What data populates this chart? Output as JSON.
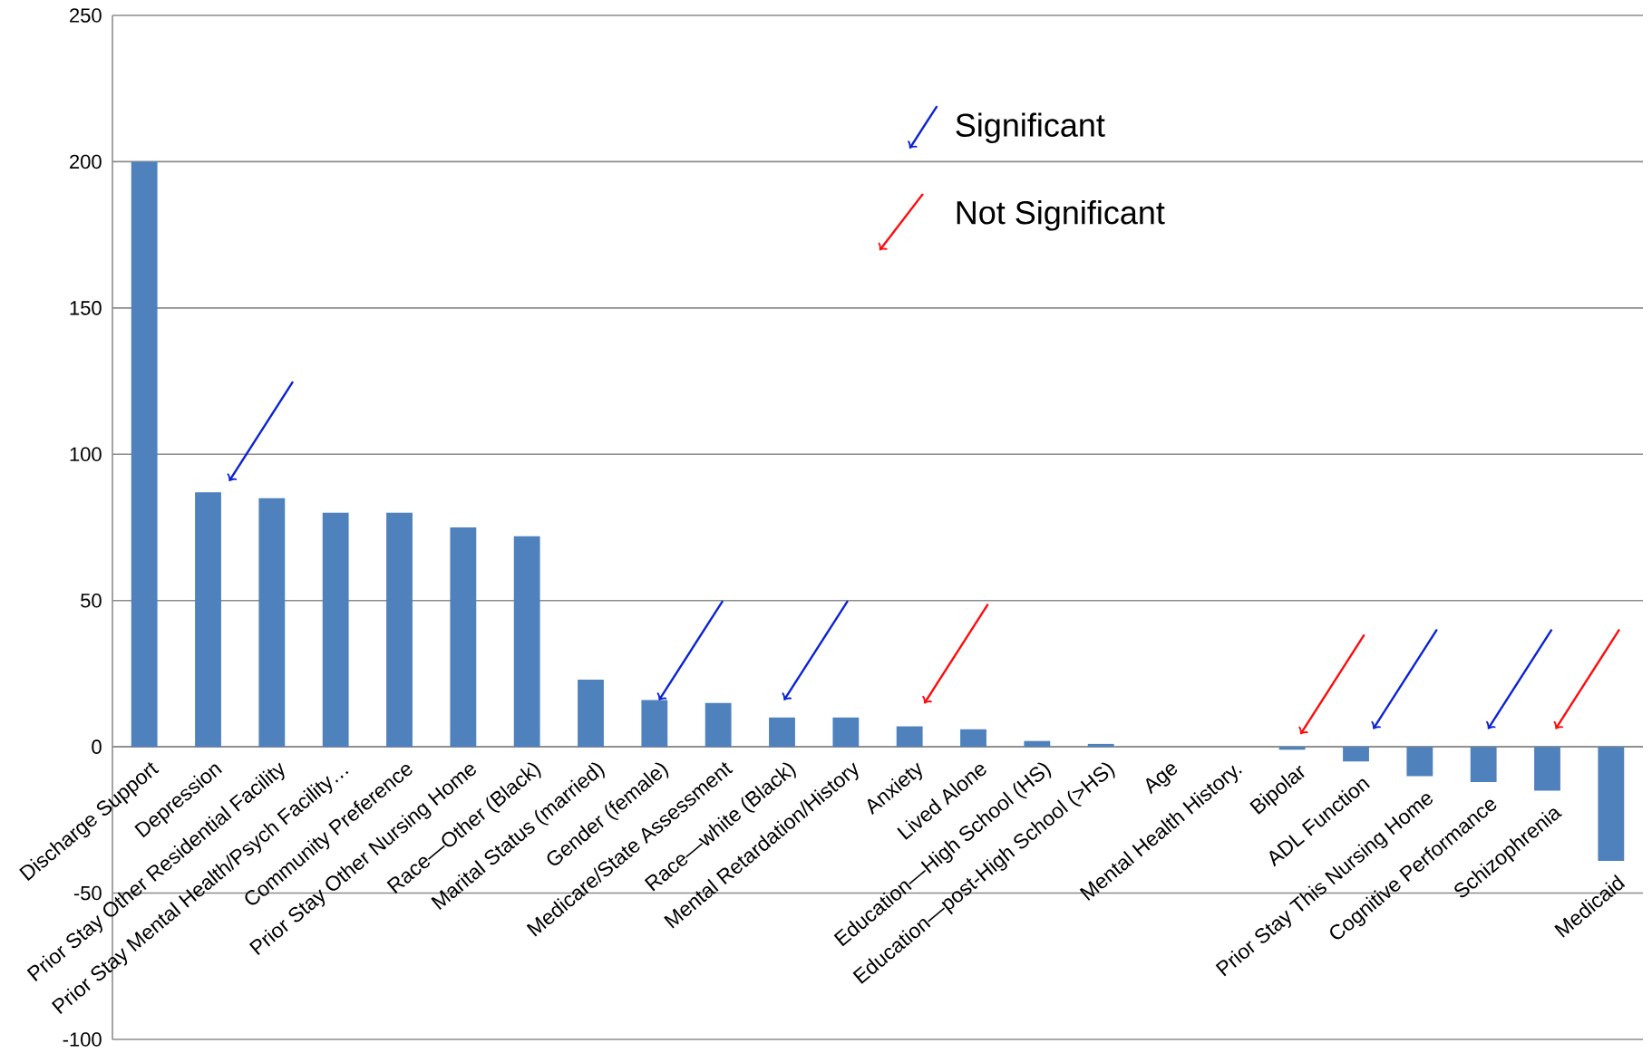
{
  "chart_data": {
    "type": "bar",
    "categories": [
      "Discharge Support",
      "Depression",
      "Prior Stay Other Residential Facility",
      "Prior Stay Mental Health/Psych Facility…",
      "Community Preference",
      "Prior Stay Other Nursing Home",
      "Race—Other (Black)",
      "Marital Status (married)",
      "Gender (female)",
      "Medicare/State Assessment",
      "Race—white (Black)",
      "Mental Retardation/History",
      "Anxiety",
      "Lived Alone",
      "Education—High School (HS)",
      "Education—post-High School (>HS)",
      "Age",
      "Mental Health History.",
      "Bipolar",
      "ADL Function",
      "Prior Stay This Nursing Home",
      "Cognitive Performance",
      "Schizophrenia",
      "Medicaid"
    ],
    "values": [
      200,
      87,
      85,
      80,
      80,
      75,
      72,
      23,
      16,
      15,
      10,
      10,
      7,
      6,
      2,
      1,
      0,
      0,
      -1,
      -5,
      -10,
      -12,
      -15,
      -39
    ],
    "color": "#4f81bd",
    "ylim": [
      -100,
      250
    ],
    "yticks": [
      -100,
      -50,
      0,
      50,
      100,
      150,
      200,
      250
    ],
    "grid": "y",
    "annotations": [
      "Significant",
      "Not Significant"
    ]
  }
}
